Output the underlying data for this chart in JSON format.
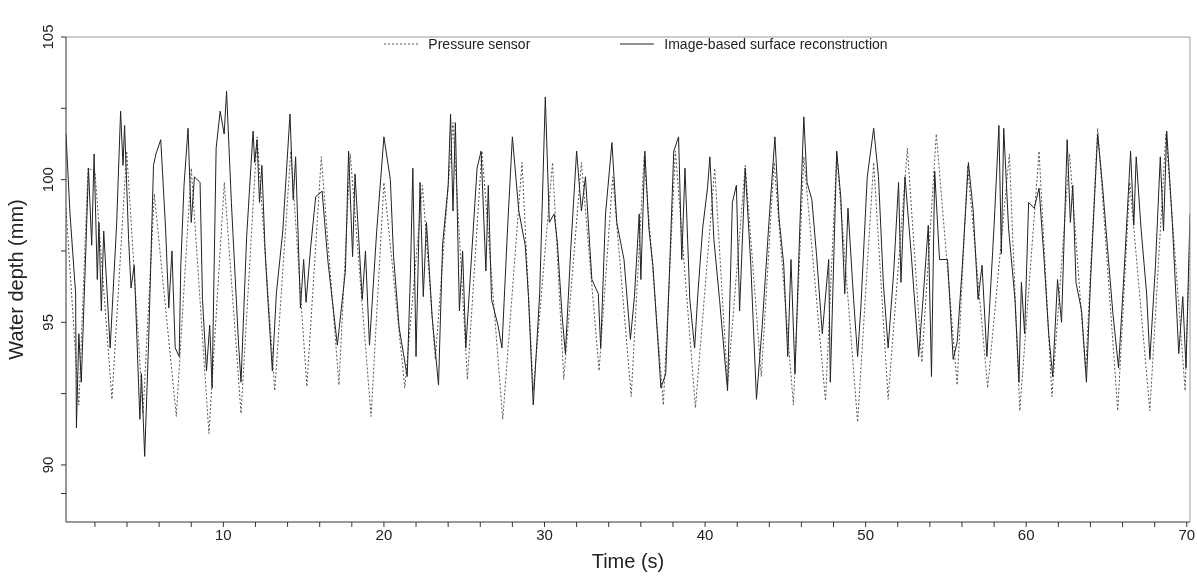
{
  "chart_data": {
    "type": "line",
    "xlabel": "Time (s)",
    "ylabel": "Water depth (mm)",
    "legend": "top",
    "marker": "none",
    "xlim": [
      0.2,
      70.2
    ],
    "ylim": [
      88,
      105
    ],
    "xticks": [
      {
        "value": 2,
        "label": null
      },
      {
        "value": 4,
        "label": null
      },
      {
        "value": 6,
        "label": null
      },
      {
        "value": 8,
        "label": null
      },
      10,
      {
        "value": 12,
        "label": null
      },
      {
        "value": 14,
        "label": null
      },
      {
        "value": 16,
        "label": null
      },
      {
        "value": 18,
        "label": null
      },
      20,
      {
        "value": 22,
        "label": null
      },
      {
        "value": 24,
        "label": null
      },
      {
        "value": 26,
        "label": null
      },
      {
        "value": 28,
        "label": null
      },
      30,
      {
        "value": 32,
        "label": null
      },
      {
        "value": 34,
        "label": null
      },
      {
        "value": 36,
        "label": null
      },
      {
        "value": 38,
        "label": null
      },
      40,
      {
        "value": 42,
        "label": null
      },
      {
        "value": 44,
        "label": null
      },
      {
        "value": 46,
        "label": null
      },
      {
        "value": 48,
        "label": null
      },
      50,
      {
        "value": 52,
        "label": null
      },
      {
        "value": 54,
        "label": null
      },
      {
        "value": 56,
        "label": null
      },
      {
        "value": 58,
        "label": null
      },
      60,
      {
        "value": 62,
        "label": null
      },
      {
        "value": 64,
        "label": null
      },
      {
        "value": 66,
        "label": null
      },
      {
        "value": 68,
        "label": null
      },
      70
    ],
    "yticks": [
      {
        "value": 89,
        "label": null
      },
      90,
      {
        "value": 92.5,
        "label": null
      },
      95,
      {
        "value": 97.5,
        "label": null
      },
      100,
      {
        "value": 102.5,
        "label": null
      },
      105
    ],
    "series": [
      {
        "name": "Pressure sensor",
        "color": "#555555",
        "line_style": "dotted",
        "x": [
          0.2,
          1.0,
          1.57,
          2.0,
          3.06,
          3.98,
          5.0,
          5.7,
          7.07,
          8.0,
          9.1,
          10.06,
          11.1,
          12.1,
          13.2,
          14.2,
          15.2,
          16.1,
          17.2,
          17.9,
          19.2,
          20.0,
          21.3,
          22.4,
          23.2,
          24.3,
          25.2,
          26.1,
          27.4,
          28.6,
          29.3,
          30.5,
          31.2,
          32.3,
          33.4,
          34.25,
          35.4,
          36.2,
          37.4,
          38.15,
          39.4,
          40.6,
          41.4,
          42.5,
          43.5,
          44.3,
          45.5,
          46.15,
          47.5,
          48.2,
          49.5,
          50.5,
          51.4,
          52.6,
          53.5,
          54.4,
          55.7,
          56.35,
          57.6,
          58.95,
          59.6,
          60.8,
          61.6,
          62.7,
          63.7,
          64.45,
          65.7,
          66.45,
          67.7,
          68.7,
          69.9,
          70.2
        ],
        "values": [
          99.0,
          92.1,
          100.4,
          100.3,
          92.3,
          101.0,
          91.8,
          99.5,
          91.7,
          100.4,
          91.1,
          99.9,
          91.8,
          101.5,
          92.6,
          101.0,
          92.75,
          100.8,
          92.8,
          100.9,
          91.7,
          99.9,
          92.7,
          99.8,
          93.7,
          102.0,
          93.0,
          101.0,
          91.6,
          100.6,
          92.6,
          100.6,
          93.0,
          100.6,
          93.3,
          100.1,
          92.4,
          100.8,
          92.1,
          101.0,
          92.0,
          100.4,
          92.8,
          100.5,
          93.1,
          100.6,
          92.1,
          100.8,
          92.25,
          100.9,
          91.5,
          100.6,
          92.3,
          101.1,
          93.6,
          101.6,
          92.8,
          100.5,
          92.7,
          100.9,
          91.9,
          101.0,
          92.4,
          100.9,
          93.3,
          101.8,
          91.9,
          99.9,
          91.9,
          101.6,
          92.6,
          98.0
        ]
      },
      {
        "name": "Image-based surface reconstruction",
        "color": "#222222",
        "line_style": "solid",
        "x": [
          0.2,
          0.45,
          0.8,
          0.85,
          1.0,
          1.15,
          1.45,
          1.6,
          1.8,
          1.95,
          2.15,
          2.25,
          2.4,
          2.55,
          2.95,
          3.35,
          3.6,
          3.75,
          3.85,
          4.1,
          4.25,
          4.45,
          4.8,
          4.9,
          5.1,
          5.35,
          5.65,
          5.8,
          6.1,
          6.4,
          6.6,
          6.8,
          7.0,
          7.25,
          7.35,
          7.55,
          7.8,
          8.0,
          8.2,
          8.55,
          8.7,
          8.95,
          9.15,
          9.3,
          9.55,
          9.8,
          10.05,
          10.2,
          10.5,
          10.95,
          11.1,
          11.45,
          11.85,
          11.95,
          12.1,
          12.25,
          12.4,
          12.6,
          12.75,
          13.05,
          13.3,
          13.7,
          14.15,
          14.35,
          14.5,
          14.8,
          15.0,
          15.15,
          15.45,
          15.75,
          16.15,
          16.5,
          17.1,
          17.6,
          17.8,
          18.05,
          18.2,
          18.65,
          18.85,
          19.1,
          19.55,
          20.0,
          20.4,
          20.6,
          20.95,
          21.45,
          21.65,
          21.8,
          22.0,
          22.25,
          22.45,
          22.65,
          23.0,
          23.4,
          23.65,
          24.0,
          24.15,
          24.3,
          24.45,
          24.7,
          24.9,
          25.1,
          25.4,
          25.8,
          26.05,
          26.35,
          26.5,
          26.7,
          27.1,
          27.35,
          27.7,
          28.0,
          28.4,
          28.8,
          29.0,
          29.3,
          29.7,
          30.05,
          30.3,
          30.6,
          30.8,
          31.1,
          31.3,
          31.65,
          32.0,
          32.3,
          32.55,
          32.95,
          33.35,
          33.5,
          33.8,
          34.2,
          34.5,
          34.95,
          35.35,
          35.6,
          35.9,
          36.0,
          36.25,
          36.5,
          36.75,
          37.25,
          37.55,
          37.8,
          38.05,
          38.35,
          38.55,
          38.75,
          39.05,
          39.35,
          39.55,
          39.85,
          40.15,
          40.3,
          40.55,
          40.9,
          41.4,
          41.7,
          41.95,
          42.15,
          42.5,
          42.85,
          43.2,
          43.55,
          44.0,
          44.35,
          44.6,
          44.9,
          45.15,
          45.35,
          45.6,
          45.9,
          46.15,
          46.35,
          46.65,
          46.95,
          47.3,
          47.7,
          47.8,
          48.2,
          48.45,
          48.7,
          48.9,
          49.25,
          49.5,
          49.7,
          50.1,
          50.5,
          50.8,
          51.1,
          51.4,
          51.75,
          52.05,
          52.2,
          52.45,
          52.85,
          53.3,
          53.6,
          53.9,
          54.1,
          54.3,
          54.6,
          55.1,
          55.45,
          55.7,
          56.0,
          56.4,
          56.7,
          57.0,
          57.25,
          57.55,
          58.0,
          58.3,
          58.45,
          58.6,
          58.9,
          59.3,
          59.55,
          59.7,
          59.9,
          60.15,
          60.5,
          60.8,
          61.1,
          61.4,
          61.65,
          61.95,
          62.2,
          62.55,
          62.75,
          62.9,
          63.1,
          63.45,
          63.75,
          64.0,
          64.45,
          64.75,
          65.15,
          65.4,
          65.75,
          66.1,
          66.5,
          66.7,
          66.85,
          67.15,
          67.5,
          67.7,
          68.05,
          68.35,
          68.55,
          68.75,
          69.1,
          69.5,
          69.75,
          69.95,
          70.2
        ],
        "values": [
          101.6,
          98.8,
          96.0,
          91.3,
          94.6,
          92.9,
          97.8,
          100.4,
          97.7,
          100.9,
          96.5,
          98.5,
          95.4,
          98.2,
          94.1,
          98.4,
          102.4,
          100.5,
          101.9,
          97.9,
          96.2,
          97.0,
          91.6,
          93.2,
          90.3,
          94.4,
          100.5,
          100.9,
          101.4,
          98.3,
          95.5,
          97.5,
          94.1,
          93.8,
          97.0,
          99.8,
          101.8,
          98.5,
          100.1,
          99.9,
          95.8,
          93.3,
          94.9,
          92.7,
          101.1,
          102.4,
          101.6,
          103.1,
          99.2,
          94.2,
          92.9,
          98.0,
          101.7,
          100.6,
          101.4,
          99.2,
          100.5,
          97.5,
          96.0,
          93.3,
          96.0,
          98.2,
          102.3,
          99.3,
          100.8,
          95.5,
          97.2,
          95.7,
          97.7,
          99.4,
          99.6,
          97.2,
          94.2,
          96.8,
          101.0,
          97.3,
          100.2,
          95.8,
          97.5,
          94.2,
          98.2,
          101.5,
          100.0,
          97.3,
          94.8,
          93.1,
          96.7,
          100.4,
          93.8,
          99.9,
          95.9,
          98.5,
          95.2,
          92.8,
          97.7,
          99.8,
          102.3,
          98.9,
          102.0,
          95.4,
          97.5,
          94.1,
          96.8,
          100.4,
          101.0,
          96.8,
          99.8,
          95.8,
          94.9,
          94.1,
          98.3,
          101.5,
          98.9,
          97.7,
          95.9,
          92.1,
          96.0,
          102.9,
          98.5,
          98.8,
          97.8,
          95.2,
          93.9,
          97.7,
          101.0,
          98.9,
          100.1,
          96.5,
          96.0,
          94.1,
          98.8,
          101.3,
          98.5,
          97.2,
          94.4,
          95.9,
          98.8,
          96.5,
          101.0,
          98.3,
          97.0,
          92.7,
          93.2,
          97.0,
          101.0,
          101.5,
          97.2,
          100.4,
          95.8,
          94.1,
          96.0,
          98.3,
          99.7,
          100.8,
          97.9,
          95.8,
          92.6,
          99.2,
          99.8,
          95.4,
          100.4,
          97.0,
          92.3,
          94.8,
          98.7,
          101.5,
          98.7,
          97.0,
          93.8,
          97.2,
          93.2,
          98.3,
          102.2,
          99.9,
          99.3,
          97.3,
          94.6,
          97.2,
          92.9,
          101.0,
          99.4,
          96.0,
          99.0,
          95.8,
          93.8,
          95.5,
          100.1,
          101.8,
          100.1,
          96.4,
          94.1,
          96.8,
          99.9,
          96.4,
          100.1,
          97.3,
          93.8,
          96.0,
          98.4,
          93.1,
          100.3,
          97.2,
          97.2,
          93.7,
          94.3,
          96.8,
          100.6,
          98.9,
          95.8,
          97.0,
          93.8,
          98.4,
          101.9,
          97.4,
          101.8,
          98.3,
          95.8,
          92.9,
          96.4,
          94.6,
          99.2,
          99.0,
          99.7,
          97.3,
          94.6,
          93.1,
          96.5,
          95.0,
          101.4,
          98.5,
          99.8,
          96.4,
          95.4,
          92.9,
          96.4,
          101.6,
          99.8,
          97.0,
          95.3,
          93.4,
          96.8,
          101.0,
          98.4,
          100.8,
          98.3,
          96.0,
          93.7,
          97.0,
          100.8,
          98.2,
          101.7,
          98.5,
          93.9,
          95.9,
          93.4,
          98.8
        ]
      }
    ]
  }
}
